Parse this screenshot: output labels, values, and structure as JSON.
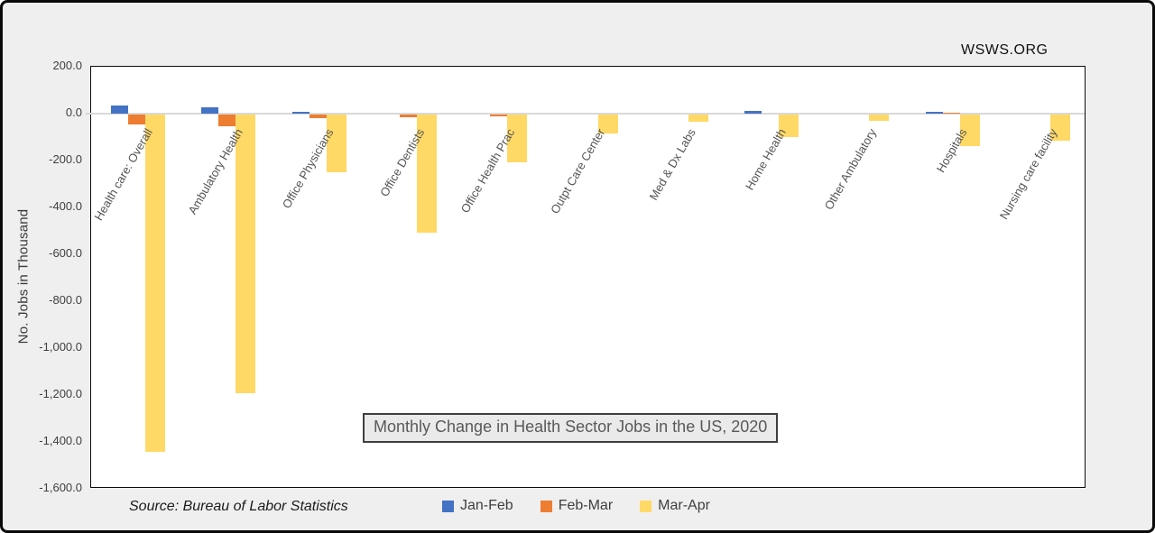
{
  "page": {
    "watermark": "WSWS.ORG",
    "source_note": "Source: Bureau of Labor Statistics"
  },
  "chart_data": {
    "type": "bar",
    "title": "Monthly Change in Health Sector Jobs in the US, 2020",
    "ylabel": "No. Jobs in Thousand",
    "ylim": [
      -1600,
      200
    ],
    "ytick_step": 200,
    "ytick_labels": [
      "200.0",
      "0.0",
      "-200.0",
      "-400.0",
      "-600.0",
      "-800.0",
      "-1,000.0",
      "-1,200.0",
      "-1,400.0",
      "-1,600.0"
    ],
    "grid": "zero-line-only",
    "legend_position": "bottom-center",
    "categories": [
      "Health care: Overall",
      "Ambulatory Health",
      "Office Physicians",
      "Office Dentists",
      "Office Health Prac",
      "Outpt Care Center",
      "Med & Dx Labs",
      "Home Health",
      "Other Ambulatory",
      "Hospitals",
      "Nursing care facility"
    ],
    "series": [
      {
        "name": "Jan-Feb",
        "color": "#4472C4",
        "values": [
          36,
          28,
          8,
          2,
          2,
          1,
          1,
          10,
          1,
          9,
          1
        ]
      },
      {
        "name": "Feb-Mar",
        "color": "#ED7D31",
        "values": [
          -43,
          -50,
          -15,
          -12,
          -8,
          -2,
          -1,
          -2,
          -1,
          3,
          -1
        ]
      },
      {
        "name": "Mar-Apr",
        "color": "#FFD966",
        "values": [
          -1440,
          -1190,
          -245,
          -503,
          -205,
          -80,
          -30,
          -95,
          -25,
          -135,
          -110
        ]
      }
    ]
  },
  "colors": {
    "background": "#efefef",
    "plot_background": "#ffffff",
    "border": "#0a0a0a",
    "zero_line": "#d9d9d9",
    "label_text": "#555555"
  }
}
